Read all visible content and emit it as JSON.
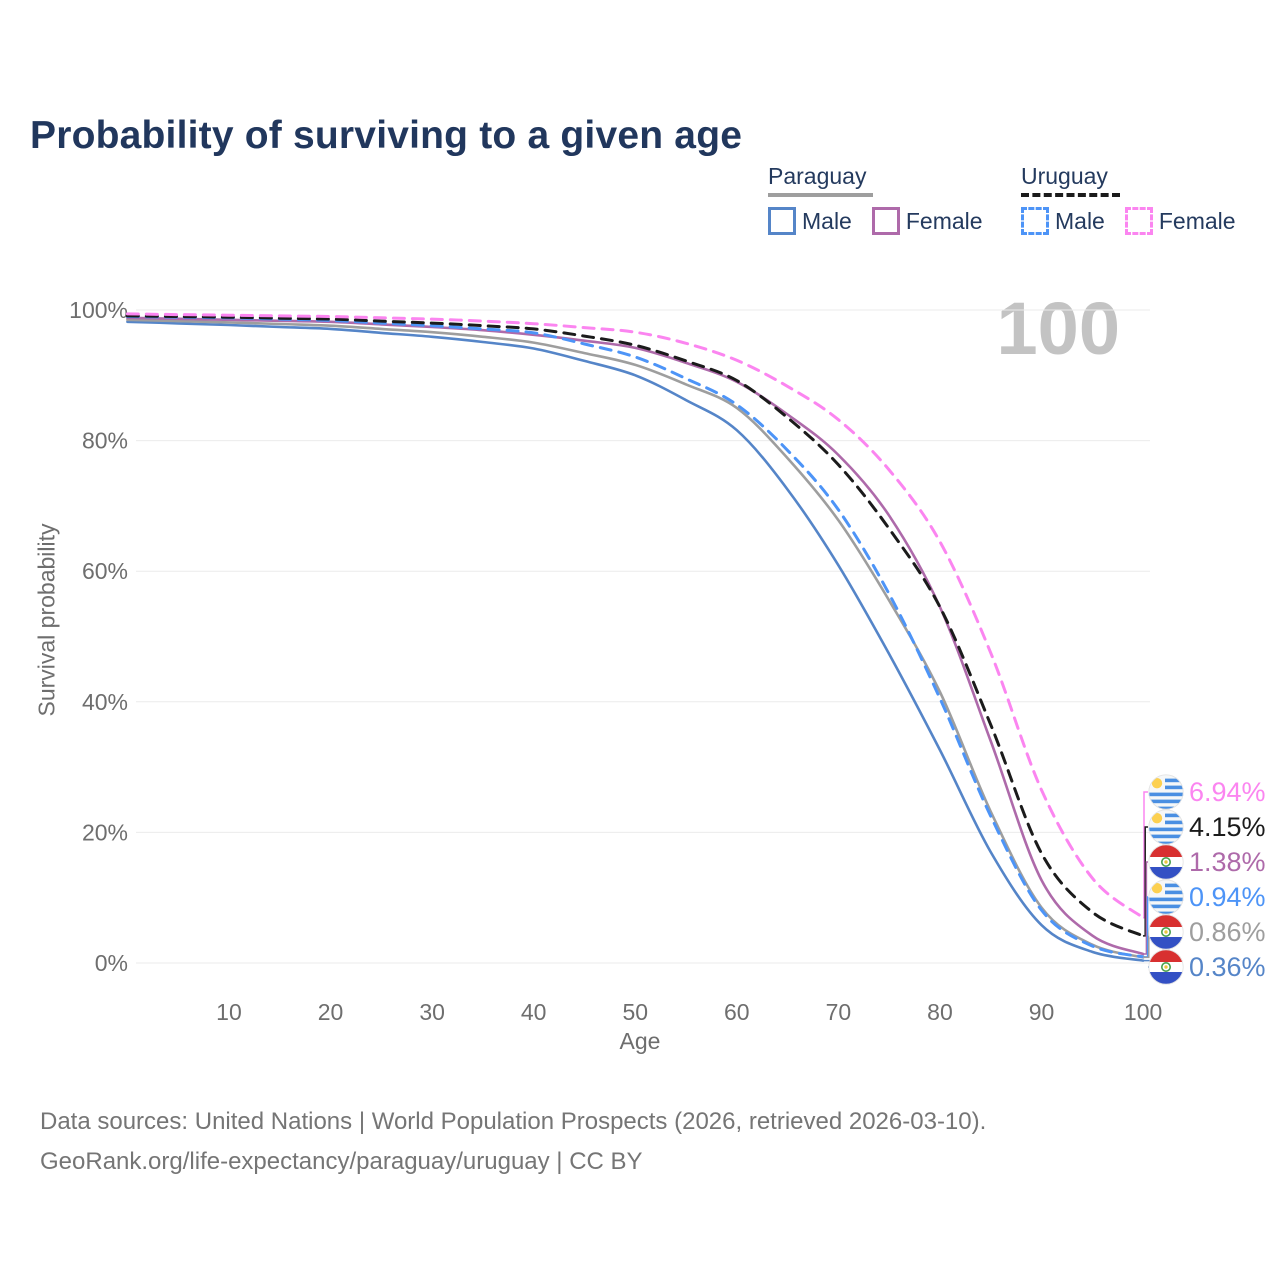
{
  "title": "Probability of surviving to a given age",
  "watermark": "100",
  "legend": {
    "groups": [
      {
        "name": "Paraguay",
        "line_style": "solid",
        "underline_color": "#9e9e9e",
        "items": [
          {
            "label": "Male",
            "color": "#5585c8"
          },
          {
            "label": "Female",
            "color": "#ae6aaa"
          }
        ]
      },
      {
        "name": "Uruguay",
        "line_style": "dashed",
        "underline_color": "#1b1b1b",
        "items": [
          {
            "label": "Male",
            "color": "#4d94f7"
          },
          {
            "label": "Female",
            "color": "#fb85f0"
          }
        ]
      }
    ]
  },
  "chart_data": {
    "type": "line",
    "title": "Probability of surviving to a given age",
    "xlabel": "Age",
    "ylabel": "Survival probability",
    "xlim": [
      0,
      100
    ],
    "ylim": [
      0,
      100
    ],
    "grid": "horizontal-only",
    "x_ticks": [
      10,
      20,
      30,
      40,
      50,
      60,
      70,
      80,
      90,
      100
    ],
    "y_ticks": [
      {
        "value": 0,
        "label": "0%"
      },
      {
        "value": 20,
        "label": "20%"
      },
      {
        "value": 40,
        "label": "40%"
      },
      {
        "value": 60,
        "label": "60%"
      },
      {
        "value": 80,
        "label": "80%"
      },
      {
        "value": 100,
        "label": "100%"
      }
    ],
    "ages": [
      0,
      5,
      10,
      15,
      20,
      25,
      30,
      35,
      40,
      45,
      50,
      55,
      60,
      65,
      70,
      75,
      80,
      85,
      90,
      95,
      100
    ],
    "series": [
      {
        "id": "paraguay-male",
        "name": "Paraguay Male",
        "country": "Paraguay",
        "sex": "Male",
        "flag": "paraguay",
        "color": "#5585c8",
        "dash": false,
        "end_label": "0.36%",
        "values": [
          98.2,
          97.95,
          97.7,
          97.4,
          97.1,
          96.5,
          95.9,
          95.1,
          94.1,
          92.2,
          90.0,
          86.2,
          81.6,
          72.5,
          60.9,
          47.3,
          32.6,
          17.0,
          5.8,
          1.7,
          0.36
        ]
      },
      {
        "id": "paraguay-total",
        "name": "Paraguay",
        "country": "Paraguay",
        "sex": "Both",
        "flag": "paraguay",
        "color": "#9e9e9e",
        "dash": false,
        "end_label": "0.86%",
        "values": [
          98.5,
          98.3,
          98.1,
          97.85,
          97.6,
          97.1,
          96.6,
          95.9,
          95.0,
          93.4,
          91.6,
          88.6,
          85.0,
          77.3,
          67.8,
          55.5,
          41.5,
          23.2,
          8.5,
          2.8,
          0.86
        ]
      },
      {
        "id": "paraguay-female",
        "name": "Paraguay Female",
        "country": "Paraguay",
        "sex": "Female",
        "flag": "paraguay",
        "color": "#ae6aaa",
        "dash": false,
        "end_label": "1.38%",
        "values": [
          98.8,
          98.65,
          98.5,
          98.35,
          98.2,
          97.8,
          97.4,
          96.9,
          96.2,
          95.3,
          94.2,
          91.9,
          89.0,
          84.0,
          77.8,
          68.5,
          54.5,
          34.0,
          12.7,
          4.2,
          1.38
        ]
      },
      {
        "id": "uruguay-male",
        "name": "Uruguay Male",
        "country": "Uruguay",
        "sex": "Male",
        "flag": "uruguay",
        "color": "#4d94f7",
        "dash": true,
        "end_label": "0.94%",
        "values": [
          99.0,
          98.9,
          98.8,
          98.6,
          98.4,
          98.0,
          97.6,
          97.1,
          96.5,
          94.8,
          92.8,
          89.5,
          85.5,
          78.5,
          69.4,
          56.5,
          40.5,
          22.5,
          8.1,
          2.6,
          0.94
        ]
      },
      {
        "id": "uruguay-total",
        "name": "Uruguay",
        "country": "Uruguay",
        "sex": "Both",
        "flag": "uruguay",
        "color": "#1b1b1b",
        "dash": true,
        "end_label": "4.15%",
        "values": [
          99.1,
          99.0,
          98.9,
          98.75,
          98.6,
          98.3,
          98.0,
          97.6,
          97.1,
          96.0,
          94.6,
          92.2,
          89.2,
          83.5,
          76.3,
          66.5,
          54.5,
          36.5,
          16.8,
          7.8,
          4.15
        ]
      },
      {
        "id": "uruguay-female",
        "name": "Uruguay Female",
        "country": "Uruguay",
        "sex": "Female",
        "flag": "uruguay",
        "color": "#fb85f0",
        "dash": true,
        "end_label": "6.94%",
        "values": [
          99.4,
          99.3,
          99.2,
          99.1,
          99.0,
          98.8,
          98.6,
          98.3,
          97.9,
          97.3,
          96.6,
          94.9,
          92.3,
          88.3,
          83.2,
          75.5,
          64.5,
          47.5,
          26.5,
          13.0,
          6.94
        ]
      }
    ]
  },
  "footer": {
    "line1": "Data sources: United Nations | World Population Prospects (2026, retrieved 2026-03-10).",
    "line2": "GeoRank.org/life-expectancy/paraguay/uruguay | CC BY"
  }
}
